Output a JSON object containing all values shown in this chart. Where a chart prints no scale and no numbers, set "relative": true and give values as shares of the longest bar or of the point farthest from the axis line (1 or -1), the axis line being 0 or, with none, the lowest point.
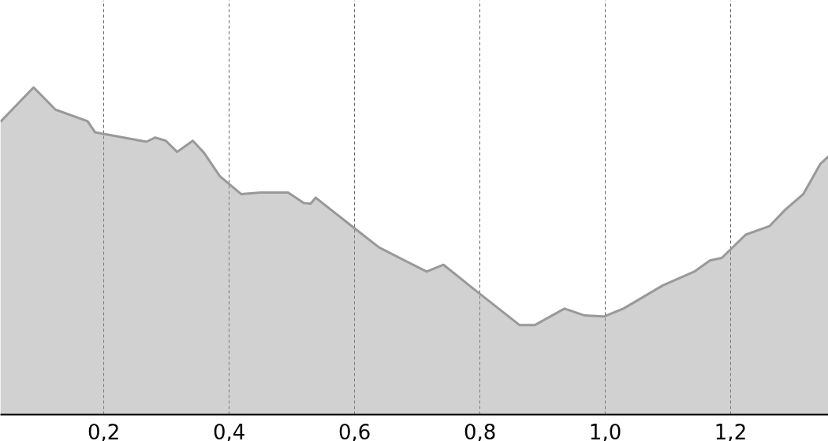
{
  "chart_data": {
    "type": "area",
    "relative": true,
    "grid": "x",
    "xlim": [
      0.035,
      1.356
    ],
    "xticks": [
      {
        "value": 0.2,
        "label": "0,2"
      },
      {
        "value": 0.4,
        "label": "0,4"
      },
      {
        "value": 0.6,
        "label": "0,6"
      },
      {
        "value": 0.8,
        "label": "0,8"
      },
      {
        "value": 1.0,
        "label": "1,0"
      },
      {
        "value": 1.2,
        "label": "1,2"
      }
    ],
    "series": [
      {
        "color": "#999999",
        "x": [
          0.035,
          0.088,
          0.123,
          0.174,
          0.186,
          0.268,
          0.282,
          0.299,
          0.317,
          0.342,
          0.36,
          0.385,
          0.419,
          0.45,
          0.494,
          0.519,
          0.53,
          0.538,
          0.601,
          0.639,
          0.715,
          0.742,
          0.79,
          0.863,
          0.888,
          0.935,
          0.967,
          0.998,
          1.029,
          1.092,
          1.142,
          1.167,
          1.186,
          1.224,
          1.262,
          1.287,
          1.316,
          1.343,
          1.356
        ],
        "values": [
          0.895,
          1.0,
          0.932,
          0.897,
          0.863,
          0.834,
          0.847,
          0.837,
          0.803,
          0.837,
          0.8,
          0.729,
          0.674,
          0.679,
          0.679,
          0.647,
          0.645,
          0.663,
          0.568,
          0.511,
          0.437,
          0.458,
          0.384,
          0.274,
          0.274,
          0.324,
          0.303,
          0.3,
          0.324,
          0.395,
          0.437,
          0.471,
          0.479,
          0.55,
          0.576,
          0.626,
          0.674,
          0.766,
          0.789
        ]
      }
    ]
  }
}
